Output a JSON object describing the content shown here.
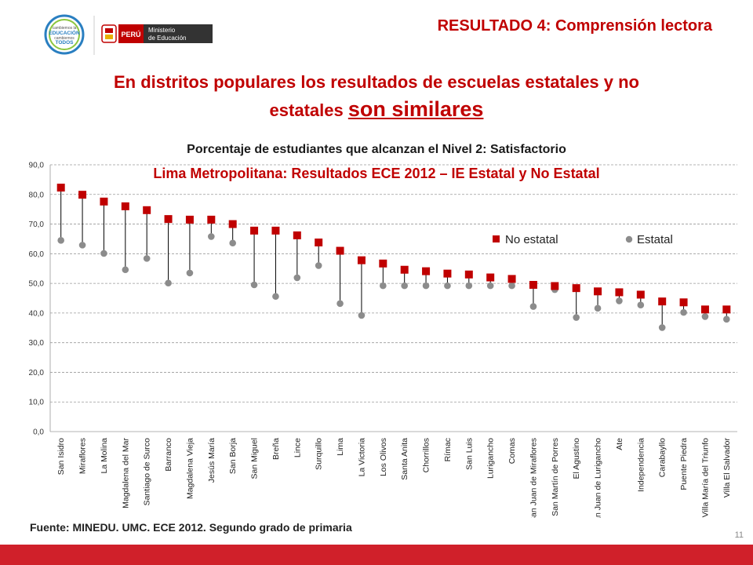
{
  "header": {
    "logo_text_1": "cambiemos la",
    "logo_text_2": "EDUCACIÓN",
    "logo_text_3": "cambiemos",
    "logo_text_4": "TODOS",
    "country_label": "PERÚ",
    "ministry_line1": "Ministerio",
    "ministry_line2": "de Educación",
    "result_title": "RESULTADO 4: Comprensión  lectora"
  },
  "headline": {
    "line1": "En distritos populares los resultados de  escuelas estatales y no",
    "line2_prefix": "estatales ",
    "line2_emphasis": "son similares"
  },
  "chart_data": {
    "type": "scatter",
    "title": "Porcentaje de estudiantes que alcanzan el Nivel 2: Satisfactorio",
    "subtitle": "Lima Metropolitana: Resultados ECE 2012 – IE Estatal y No Estatal",
    "categories": [
      "San Isidro",
      "Miraflores",
      "La Molina",
      "Magdalena del Mar",
      "Santiago de Surco",
      "Barranco",
      "Magdalena Vieja",
      "Jesús María",
      "San Borja",
      "San Miguel",
      "Breña",
      "Lince",
      "Surquillo",
      "Lima",
      "La Victoria",
      "Los Olivos",
      "Santa Anita",
      "Chorrillos",
      "Rímac",
      "San Luis",
      "Lurigancho",
      "Comas",
      "San Juan de Miraflores",
      "San Martín de Porres",
      "El Agustino",
      "San Juan de Lurigancho",
      "Ate",
      "Independencia",
      "Carabayllo",
      "Puente Piedra",
      "Villa María del Triunfo",
      "Villa El Salvador"
    ],
    "series": [
      {
        "name": "No estatal",
        "marker": "square",
        "color": "#c00000",
        "values": [
          82.3,
          79.9,
          77.6,
          76.0,
          74.7,
          71.7,
          71.5,
          71.5,
          70.0,
          67.8,
          67.8,
          66.2,
          63.8,
          61.0,
          57.8,
          56.7,
          54.6,
          54.1,
          53.3,
          53.0,
          52.0,
          51.5,
          49.5,
          49.1,
          48.4,
          47.3,
          47.0,
          46.2,
          43.9,
          43.6,
          41.2,
          41.2
        ]
      },
      {
        "name": "Estatal",
        "marker": "circle",
        "color": "#8c8c8c",
        "values": [
          64.5,
          62.9,
          60.1,
          54.6,
          58.4,
          50.1,
          53.5,
          65.8,
          63.6,
          49.5,
          45.6,
          51.9,
          56.0,
          43.2,
          39.2,
          49.2,
          49.2,
          49.2,
          49.2,
          49.2,
          49.2,
          49.2,
          42.2,
          47.9,
          38.5,
          41.6,
          44.1,
          42.7,
          35.1,
          40.2,
          38.8,
          37.9
        ]
      }
    ],
    "y_ticks": [
      "0,0",
      "10,0",
      "20,0",
      "30,0",
      "40,0",
      "50,0",
      "60,0",
      "70,0",
      "80,0",
      "90,0"
    ],
    "ylim": [
      0,
      90
    ],
    "grid": true,
    "legend_position": "right"
  },
  "footer": {
    "source": "Fuente: MINEDU. UMC. ECE 2012. Segundo grado de primaria",
    "page_number": "11"
  }
}
